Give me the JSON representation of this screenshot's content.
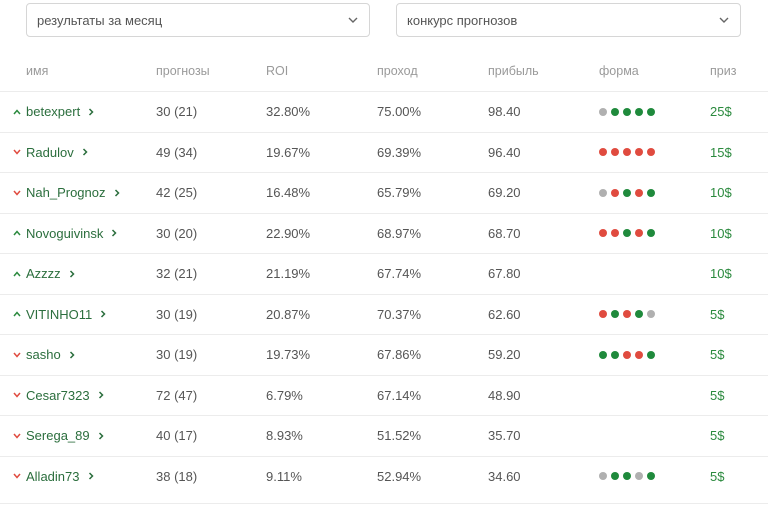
{
  "filters": {
    "period": "результаты за месяц",
    "contest": "конкурс прогнозов"
  },
  "table": {
    "headers": {
      "name": "имя",
      "forecasts": "прогнозы",
      "roi": "ROI",
      "pass": "проход",
      "profit": "прибыль",
      "form": "форма",
      "prize": "приз"
    },
    "rows": [
      {
        "name": "betexpert",
        "trend": "up",
        "forecasts": "30 (21)",
        "roi": "32.80%",
        "pass": "75.00%",
        "profit": "98.40",
        "form": [
          "n",
          "g",
          "g",
          "g",
          "g"
        ],
        "prize": "25$"
      },
      {
        "name": "Radulov",
        "trend": "down",
        "forecasts": "49 (34)",
        "roi": "19.67%",
        "pass": "69.39%",
        "profit": "96.40",
        "form": [
          "r",
          "r",
          "r",
          "r",
          "r"
        ],
        "prize": "15$"
      },
      {
        "name": "Nah_Prognoz",
        "trend": "down",
        "forecasts": "42 (25)",
        "roi": "16.48%",
        "pass": "65.79%",
        "profit": "69.20",
        "form": [
          "n",
          "r",
          "g",
          "r",
          "g"
        ],
        "prize": "10$"
      },
      {
        "name": "Novoguivinsk",
        "trend": "up",
        "forecasts": "30 (20)",
        "roi": "22.90%",
        "pass": "68.97%",
        "profit": "68.70",
        "form": [
          "r",
          "r",
          "g",
          "r",
          "g"
        ],
        "prize": "10$"
      },
      {
        "name": "Azzzz",
        "trend": "up",
        "forecasts": "32 (21)",
        "roi": "21.19%",
        "pass": "67.74%",
        "profit": "67.80",
        "form": [],
        "prize": "10$"
      },
      {
        "name": "VITINHO11",
        "trend": "up",
        "forecasts": "30 (19)",
        "roi": "20.87%",
        "pass": "70.37%",
        "profit": "62.60",
        "form": [
          "r",
          "g",
          "r",
          "g",
          "n"
        ],
        "prize": "5$"
      },
      {
        "name": "sasho",
        "trend": "down",
        "forecasts": "30 (19)",
        "roi": "19.73%",
        "pass": "67.86%",
        "profit": "59.20",
        "form": [
          "g",
          "g",
          "r",
          "r",
          "g"
        ],
        "prize": "5$"
      },
      {
        "name": "Cesar7323",
        "trend": "down",
        "forecasts": "72 (47)",
        "roi": "6.79%",
        "pass": "67.14%",
        "profit": "48.90",
        "form": [],
        "prize": "5$"
      },
      {
        "name": "Serega_89",
        "trend": "down",
        "forecasts": "40 (17)",
        "roi": "8.93%",
        "pass": "51.52%",
        "profit": "35.70",
        "form": [],
        "prize": "5$"
      },
      {
        "name": "Alladin73",
        "trend": "down",
        "forecasts": "38 (18)",
        "roi": "9.11%",
        "pass": "52.94%",
        "profit": "34.60",
        "form": [
          "n",
          "g",
          "g",
          "n",
          "g"
        ],
        "prize": "5$"
      }
    ]
  },
  "colors": {
    "up": "#2b8a3e",
    "down": "#e04b3f",
    "win": "#1f8a3c",
    "loss": "#e04b3f",
    "neutral": "#b0b0b0"
  }
}
